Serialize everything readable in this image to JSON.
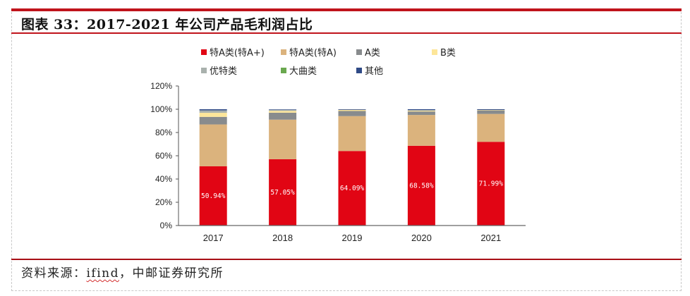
{
  "header": {
    "title": "图表 33：2017-2021 年公司产品毛利润占比"
  },
  "footer": {
    "source_prefix": "资料来源：",
    "source_link": "ifind",
    "source_suffix": "，中邮证券研究所"
  },
  "colors": {
    "rule": "#c0141c"
  },
  "chart_data": {
    "type": "bar",
    "stacked": true,
    "title": "",
    "xlabel": "",
    "ylabel": "",
    "ylim": [
      0,
      120
    ],
    "yticks": [
      "0%",
      "20%",
      "40%",
      "60%",
      "80%",
      "100%",
      "120%"
    ],
    "ytick_values": [
      0,
      20,
      40,
      60,
      80,
      100,
      120
    ],
    "categories": [
      "2017",
      "2018",
      "2019",
      "2020",
      "2021"
    ],
    "legend_position": "top",
    "grid": false,
    "series": [
      {
        "name": "特A类(特A+)",
        "color": "#e10514",
        "values": [
          50.94,
          57.05,
          64.09,
          68.58,
          71.99
        ],
        "labels": [
          "50.94%",
          "57.05%",
          "64.09%",
          "68.58%",
          "71.99%"
        ]
      },
      {
        "name": "特A类(特A)",
        "color": "#dbb37d",
        "values": [
          36.0,
          34.0,
          30.0,
          26.5,
          24.0
        ]
      },
      {
        "name": "A类",
        "color": "#888b8d",
        "values": [
          6.5,
          6.0,
          4.4,
          3.0,
          2.8
        ]
      },
      {
        "name": "B类",
        "color": "#fde699",
        "values": [
          3.5,
          1.5,
          1.0,
          0.8,
          0.5
        ]
      },
      {
        "name": "优特类",
        "color": "#a9b1ad",
        "values": [
          2.1,
          1.0,
          0.0,
          0.3,
          0.0
        ]
      },
      {
        "name": "大曲类",
        "color": "#6aa84f",
        "values": [
          0.0,
          0.0,
          0.0,
          0.0,
          0.0
        ]
      },
      {
        "name": "其他",
        "color": "#2f4a86",
        "values": [
          0.96,
          0.4,
          0.5,
          0.82,
          0.71
        ]
      }
    ]
  }
}
